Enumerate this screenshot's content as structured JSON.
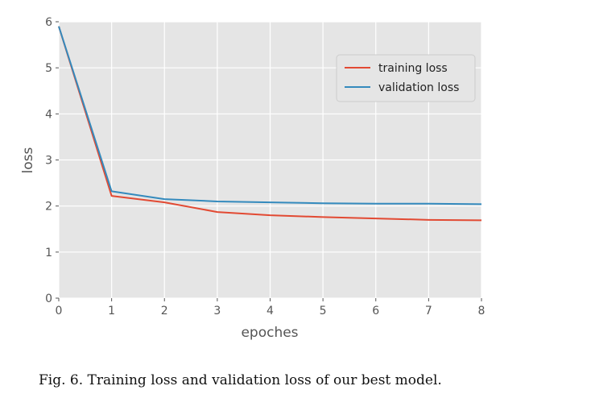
{
  "chart_data": {
    "type": "line",
    "xlabel": "epoches",
    "ylabel": "loss",
    "xlim": [
      0,
      8
    ],
    "ylim": [
      0,
      6
    ],
    "x_ticks": [
      0,
      1,
      2,
      3,
      4,
      5,
      6,
      7,
      8
    ],
    "y_ticks": [
      0,
      1,
      2,
      3,
      4,
      5,
      6
    ],
    "grid": true,
    "legend_position": "top-right",
    "x": [
      0,
      1,
      2,
      3,
      4,
      5,
      6,
      7,
      8
    ],
    "series": [
      {
        "name": "training loss",
        "color": "#e24a33",
        "values": [
          5.9,
          2.22,
          2.08,
          1.87,
          1.8,
          1.76,
          1.73,
          1.7,
          1.69
        ]
      },
      {
        "name": "validation loss",
        "color": "#348abd",
        "values": [
          5.9,
          2.32,
          2.15,
          2.1,
          2.08,
          2.06,
          2.05,
          2.05,
          2.04
        ]
      }
    ]
  },
  "caption": "Fig. 6.  Training loss and validation loss of our best model."
}
